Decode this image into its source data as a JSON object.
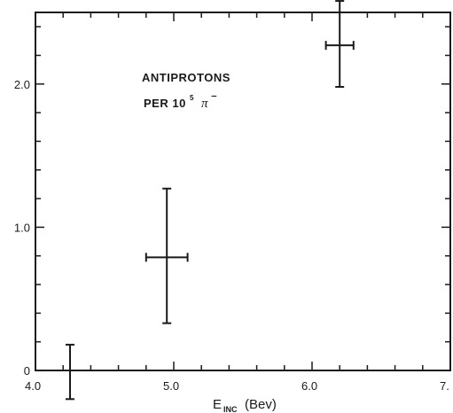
{
  "chart_data": {
    "type": "scatter",
    "title": "",
    "annotation": {
      "line1": "ANTIPROTONS",
      "line2_prefix": "PER 10",
      "line2_sup": "5",
      "line2_pi": "π",
      "line2_minus": "⁻"
    },
    "xlabel": {
      "main": "E",
      "sub": "INC",
      "unit": "(Bev)"
    },
    "xlim": [
      4.0,
      7.0
    ],
    "ylim": [
      0,
      2.5
    ],
    "x_ticks": [
      4.0,
      5.0,
      6.0,
      7.0
    ],
    "x_tick_labels": [
      "4.0",
      "5.0",
      "6.0",
      "7."
    ],
    "y_ticks": [
      0,
      1.0,
      2.0
    ],
    "y_tick_labels": [
      "0",
      "1.0",
      "2.0"
    ],
    "points": [
      {
        "x": 4.25,
        "y": 0.0,
        "y_low": -0.2,
        "y_high": 0.18,
        "x_low": null,
        "x_high": null
      },
      {
        "x": 4.95,
        "y": 0.79,
        "y_low": 0.33,
        "y_high": 1.27,
        "x_low": 4.8,
        "x_high": 5.1
      },
      {
        "x": 6.2,
        "y": 2.27,
        "y_low": 1.98,
        "y_high": 2.58,
        "x_low": 6.1,
        "x_high": 6.3
      }
    ],
    "grid": false,
    "colors": {
      "ink": "#1a1a1a",
      "background": "#ffffff"
    }
  }
}
